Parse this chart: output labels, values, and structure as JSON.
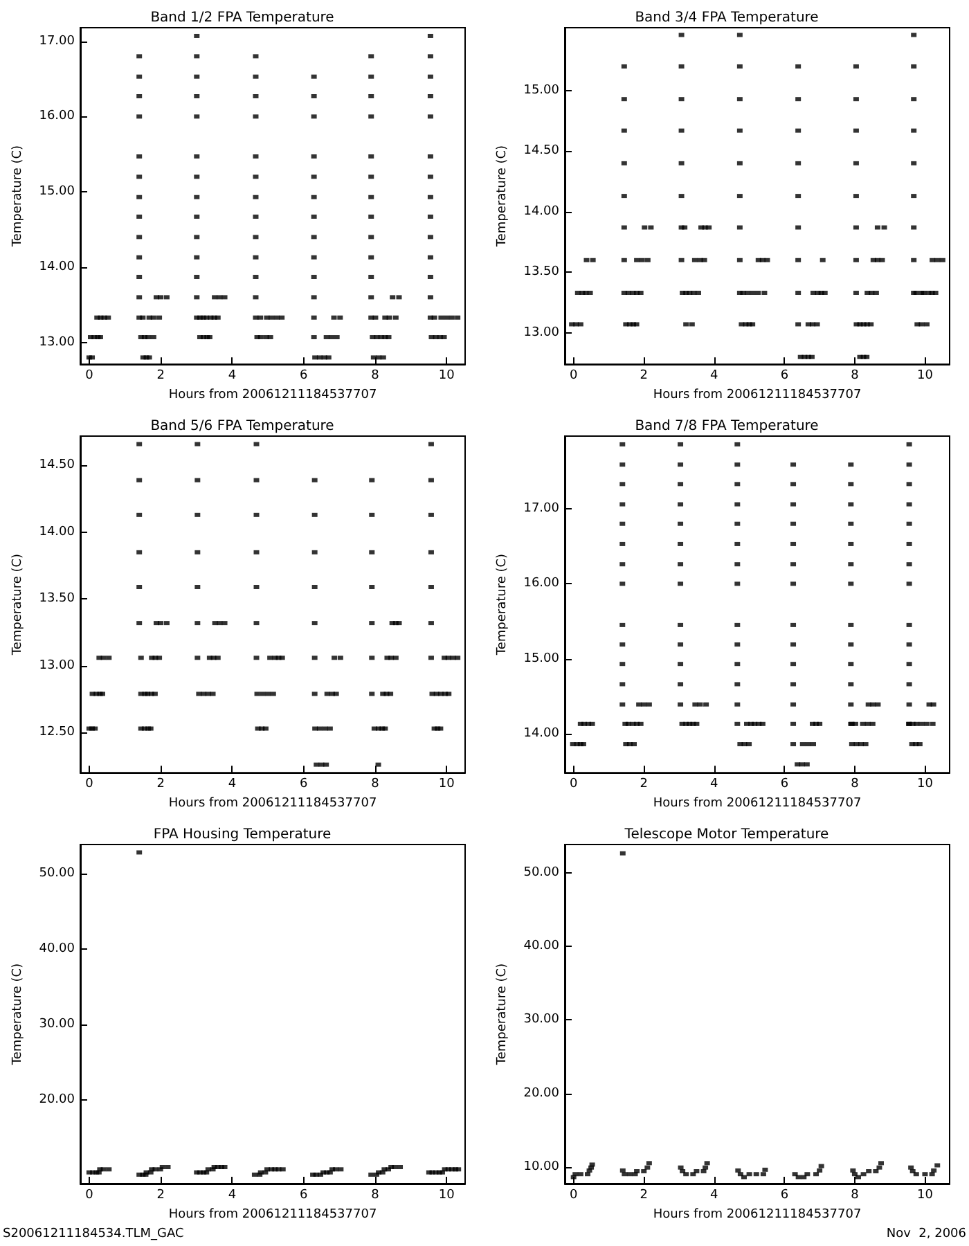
{
  "chart_data": [
    {
      "type": "scatter",
      "title": "Band 1/2 FPA Temperature",
      "xlabel": "Hours from 20061211184537707",
      "ylabel": "Temperature (C)",
      "marker": "square",
      "color": "#000000",
      "xlim": [
        -0.25,
        10.52
      ],
      "xticks": [
        0,
        2,
        4,
        6,
        8,
        10
      ],
      "ylim": [
        12.71,
        17.18
      ],
      "yticks": [
        {
          "value": 13,
          "label": "13.00"
        },
        {
          "value": 14,
          "label": "14.00"
        },
        {
          "value": 15,
          "label": "15.00"
        },
        {
          "value": 16,
          "label": "16.00"
        },
        {
          "value": 17,
          "label": "17.00"
        }
      ],
      "x": [
        0,
        0.08,
        0.04,
        0.14,
        0.24,
        0.31,
        0.22,
        0.32,
        0.42,
        0.53,
        1.4,
        1.4,
        1.4,
        1.4,
        1.4,
        1.4,
        1.4,
        1.4,
        1.4,
        1.4,
        1.4,
        1.4,
        1.4,
        1.5,
        1.45,
        1.55,
        1.65,
        1.8,
        1.51,
        1.6,
        1.68,
        1.68,
        1.8,
        1.96,
        1.88,
        2,
        2.17,
        3.01,
        3.01,
        3.01,
        3.01,
        3.01,
        3.01,
        3.01,
        3.01,
        3.01,
        3.01,
        3.01,
        3.01,
        3.01,
        3.01,
        3.1,
        3.19,
        3.28,
        3.4,
        3.5,
        3.6,
        3.1,
        3.2,
        3.3,
        3.37,
        3.51,
        3.65,
        3.79,
        4.66,
        4.66,
        4.66,
        4.66,
        4.66,
        4.66,
        4.66,
        4.66,
        4.66,
        4.66,
        4.66,
        4.66,
        4.66,
        4.79,
        4.97,
        5.1,
        5.25,
        5.39,
        4.7,
        4.8,
        4.95,
        5.07,
        6.29,
        6.29,
        6.29,
        6.29,
        6.29,
        6.29,
        6.29,
        6.29,
        6.29,
        6.29,
        6.29,
        6.29,
        6.29,
        6.32,
        6.45,
        6.58,
        6.7,
        6.64,
        6.78,
        6.93,
        6.85,
        7.02,
        7.89,
        7.89,
        7.89,
        7.89,
        7.89,
        7.89,
        7.89,
        7.89,
        7.89,
        7.89,
        7.89,
        7.89,
        7.89,
        7.93,
        8.05,
        8.17,
        8.28,
        8.38,
        7.96,
        8.1,
        8.23,
        8.01,
        8.28,
        8.4,
        8.58,
        8.49,
        8.67,
        9.55,
        9.55,
        9.55,
        9.55,
        9.55,
        9.55,
        9.55,
        9.55,
        9.55,
        9.55,
        9.55,
        9.55,
        9.55,
        9.55,
        9.66,
        9.85,
        10,
        10.15,
        10.31,
        9.58,
        9.7,
        9.82,
        9.93
      ],
      "values": [
        12.8,
        12.8,
        13.07,
        13.07,
        13.07,
        13.07,
        13.33,
        13.33,
        13.33,
        13.33,
        13.33,
        13.6,
        13.87,
        14.13,
        14.4,
        14.67,
        14.93,
        15.2,
        15.47,
        16,
        16.27,
        16.53,
        16.8,
        13.33,
        13.07,
        13.07,
        13.07,
        13.07,
        12.8,
        12.8,
        12.8,
        13.33,
        13.33,
        13.33,
        13.6,
        13.6,
        13.6,
        13.33,
        13.6,
        13.87,
        14.13,
        14.4,
        14.67,
        14.93,
        15.2,
        15.47,
        16,
        16.27,
        16.53,
        16.8,
        17.07,
        13.33,
        13.33,
        13.33,
        13.33,
        13.33,
        13.33,
        13.07,
        13.07,
        13.07,
        13.07,
        13.6,
        13.6,
        13.6,
        13.33,
        13.6,
        13.87,
        14.13,
        14.4,
        14.67,
        14.93,
        15.2,
        15.47,
        16,
        16.27,
        16.53,
        16.8,
        13.33,
        13.33,
        13.33,
        13.33,
        13.33,
        13.07,
        13.07,
        13.07,
        13.07,
        13.07,
        13.33,
        13.6,
        13.87,
        14.13,
        14.4,
        14.67,
        14.93,
        15.2,
        15.47,
        16,
        16.27,
        16.53,
        12.8,
        12.8,
        12.8,
        12.8,
        13.07,
        13.07,
        13.07,
        13.33,
        13.33,
        13.33,
        13.6,
        13.87,
        14.13,
        14.4,
        14.67,
        14.93,
        15.2,
        15.47,
        16,
        16.27,
        16.53,
        16.8,
        13.07,
        13.07,
        13.07,
        13.07,
        13.07,
        12.8,
        12.8,
        12.8,
        13.33,
        13.33,
        13.33,
        13.33,
        13.6,
        13.6,
        13.33,
        13.6,
        13.87,
        14.13,
        14.4,
        14.67,
        14.93,
        15.2,
        15.47,
        16,
        16.27,
        16.53,
        16.8,
        17.07,
        13.33,
        13.33,
        13.33,
        13.33,
        13.33,
        13.07,
        13.07,
        13.07,
        13.07
      ]
    },
    {
      "type": "scatter",
      "title": "Band 3/4 FPA Temperature",
      "xlabel": "Hours from 20061211184537707",
      "ylabel": "Temperature (C)",
      "marker": "square",
      "color": "#000000",
      "xlim": [
        -0.25,
        10.7
      ],
      "xticks": [
        0,
        2,
        4,
        6,
        8,
        10
      ],
      "ylim": [
        12.74,
        15.52
      ],
      "yticks": [
        {
          "value": 13,
          "label": "13.00"
        },
        {
          "value": 13.5,
          "label": "13.50"
        },
        {
          "value": 14,
          "label": "14.00"
        },
        {
          "value": 14.5,
          "label": "14.50"
        },
        {
          "value": 15,
          "label": "15.00"
        }
      ],
      "x": [
        -0.05,
        0.07,
        0.2,
        0.12,
        0.25,
        0.35,
        0.47,
        0.37,
        0.55,
        1.44,
        1.44,
        1.44,
        1.44,
        1.44,
        1.44,
        1.44,
        1.44,
        1.56,
        1.69,
        1.8,
        1.91,
        1.49,
        1.6,
        1.7,
        1.79,
        1.8,
        1.95,
        2.11,
        2.02,
        2.2,
        3.07,
        3.07,
        3.07,
        3.07,
        3.07,
        3.07,
        3.07,
        3.07,
        3.1,
        3.2,
        3.3,
        3.42,
        3.55,
        3.2,
        3.37,
        3.45,
        3.6,
        3.72,
        3.16,
        3.63,
        3.74,
        3.85,
        4.73,
        4.73,
        4.73,
        4.73,
        4.73,
        4.73,
        4.73,
        4.73,
        4.73,
        4.78,
        4.9,
        5,
        5.09,
        4.82,
        4.95,
        5.1,
        5.25,
        5.43,
        5.26,
        5.38,
        5.51,
        6.39,
        6.39,
        6.39,
        6.39,
        6.39,
        6.39,
        6.39,
        6.39,
        6.39,
        6.46,
        6.57,
        6.68,
        6.78,
        6.68,
        6.8,
        6.93,
        6.82,
        6.95,
        7.05,
        7.15,
        7.09,
        8.04,
        8.04,
        8.04,
        8.04,
        8.04,
        8.04,
        8.04,
        8.04,
        8.05,
        8.15,
        8.25,
        8.35,
        8.46,
        8.15,
        8.25,
        8.34,
        8.36,
        8.48,
        8.61,
        8.53,
        8.65,
        8.78,
        8.65,
        8.84,
        9.68,
        9.68,
        9.68,
        9.68,
        9.68,
        9.68,
        9.68,
        9.68,
        9.68,
        9.78,
        9.9,
        10.05,
        9.75,
        9.9,
        9.96,
        10.1,
        10.2,
        10.3,
        10.21,
        10.35,
        10.5
      ],
      "values": [
        13.07,
        13.07,
        13.07,
        13.33,
        13.33,
        13.33,
        13.33,
        13.6,
        13.6,
        13.33,
        13.6,
        13.87,
        14.13,
        14.4,
        14.67,
        14.93,
        15.2,
        13.33,
        13.33,
        13.33,
        13.33,
        13.07,
        13.07,
        13.07,
        13.07,
        13.6,
        13.6,
        13.6,
        13.87,
        13.87,
        13.6,
        13.87,
        14.13,
        14.4,
        14.67,
        14.93,
        15.2,
        15.46,
        13.33,
        13.33,
        13.33,
        13.33,
        13.33,
        13.07,
        13.07,
        13.6,
        13.6,
        13.6,
        13.87,
        13.87,
        13.87,
        13.87,
        13.33,
        13.6,
        13.87,
        14.13,
        14.4,
        14.67,
        14.93,
        15.2,
        15.46,
        13.07,
        13.07,
        13.07,
        13.07,
        13.33,
        13.33,
        13.33,
        13.33,
        13.33,
        13.6,
        13.6,
        13.6,
        13.07,
        13.33,
        13.6,
        13.87,
        14.13,
        14.4,
        14.67,
        14.93,
        15.2,
        12.8,
        12.8,
        12.8,
        12.8,
        13.07,
        13.07,
        13.07,
        13.33,
        13.33,
        13.33,
        13.33,
        13.6,
        13.33,
        13.6,
        13.87,
        14.13,
        14.4,
        14.67,
        14.93,
        15.2,
        13.07,
        13.07,
        13.07,
        13.07,
        13.07,
        12.8,
        12.8,
        12.8,
        13.33,
        13.33,
        13.33,
        13.6,
        13.6,
        13.6,
        13.87,
        13.87,
        13.33,
        13.6,
        13.87,
        14.13,
        14.4,
        14.67,
        14.93,
        15.2,
        15.46,
        13.07,
        13.07,
        13.07,
        13.33,
        13.33,
        13.33,
        13.33,
        13.33,
        13.33,
        13.6,
        13.6,
        13.6
      ]
    },
    {
      "type": "scatter",
      "title": "Band 5/6 FPA Temperature",
      "xlabel": "Hours from 20061211184537707",
      "ylabel": "Temperature (C)",
      "marker": "square",
      "color": "#000000",
      "xlim": [
        -0.25,
        10.52
      ],
      "xticks": [
        0,
        2,
        4,
        6,
        8,
        10
      ],
      "ylim": [
        12.2,
        14.72
      ],
      "yticks": [
        {
          "value": 12.5,
          "label": "12.50"
        },
        {
          "value": 13,
          "label": "13.00"
        },
        {
          "value": 13.5,
          "label": "13.50"
        },
        {
          "value": 14,
          "label": "14.00"
        },
        {
          "value": 14.5,
          "label": "14.50"
        }
      ],
      "x": [
        0,
        0.08,
        0.16,
        0.09,
        0.2,
        0.3,
        0.37,
        0.28,
        0.4,
        0.55,
        1.4,
        1.4,
        1.4,
        1.4,
        1.4,
        1.4,
        1.45,
        1.75,
        1.85,
        1.96,
        1.45,
        1.56,
        1.63,
        1.74,
        1.84,
        1.45,
        1.55,
        1.65,
        1.72,
        1.88,
        2,
        2.17,
        3.03,
        3.03,
        3.03,
        3.03,
        3.03,
        3.03,
        3.03,
        3.07,
        3.2,
        3.33,
        3.46,
        3.37,
        3.48,
        3.6,
        3.52,
        3.65,
        3.79,
        4.68,
        4.68,
        4.68,
        4.68,
        4.68,
        4.68,
        4.68,
        4.7,
        4.85,
        5,
        5.15,
        4.72,
        4.83,
        4.94,
        5.06,
        5.2,
        5.3,
        5.4,
        6.31,
        6.31,
        6.31,
        6.31,
        6.31,
        6.31,
        6.31,
        6.32,
        6.45,
        6.6,
        6.74,
        6.36,
        6.5,
        6.63,
        6.66,
        6.8,
        6.91,
        6.86,
        7.03,
        7.91,
        7.91,
        7.91,
        7.91,
        7.91,
        7.91,
        7.91,
        7.98,
        8.1,
        8.2,
        8.28,
        8.09,
        8.22,
        8.32,
        8.43,
        8.34,
        8.45,
        8.58,
        8.48,
        8.58,
        8.67,
        9.57,
        9.57,
        9.57,
        9.57,
        9.57,
        9.57,
        9.57,
        9.6,
        9.72,
        9.84,
        9.96,
        10.06,
        9.66,
        9.75,
        9.83,
        9.94,
        10.05,
        10.18,
        10.31
      ],
      "values": [
        12.53,
        12.53,
        12.53,
        12.79,
        12.79,
        12.79,
        12.79,
        13.06,
        13.06,
        13.06,
        13.32,
        13.59,
        13.85,
        14.13,
        14.39,
        14.66,
        13.06,
        13.06,
        13.06,
        13.06,
        12.79,
        12.79,
        12.79,
        12.79,
        12.79,
        12.53,
        12.53,
        12.53,
        12.53,
        13.32,
        13.32,
        13.32,
        13.06,
        13.32,
        13.59,
        13.85,
        14.13,
        14.39,
        14.66,
        12.79,
        12.79,
        12.79,
        12.79,
        13.06,
        13.06,
        13.06,
        13.32,
        13.32,
        13.32,
        13.06,
        13.32,
        13.59,
        13.85,
        14.13,
        14.39,
        14.66,
        12.79,
        12.79,
        12.79,
        12.79,
        12.53,
        12.53,
        12.53,
        13.06,
        13.06,
        13.06,
        13.06,
        12.79,
        13.06,
        13.32,
        13.59,
        13.85,
        14.13,
        14.39,
        12.53,
        12.53,
        12.53,
        12.53,
        12.26,
        12.26,
        12.26,
        12.79,
        12.79,
        12.79,
        13.06,
        13.06,
        12.79,
        13.06,
        13.32,
        13.59,
        13.85,
        14.13,
        14.39,
        12.53,
        12.53,
        12.53,
        12.53,
        12.26,
        12.79,
        12.79,
        12.79,
        13.06,
        13.06,
        13.06,
        13.32,
        13.32,
        13.32,
        13.06,
        13.32,
        13.59,
        13.85,
        14.13,
        14.39,
        14.66,
        12.79,
        12.79,
        12.79,
        12.79,
        12.79,
        12.53,
        12.53,
        12.53,
        13.06,
        13.06,
        13.06,
        13.06
      ]
    },
    {
      "type": "scatter",
      "title": "Band 7/8 FPA Temperature",
      "xlabel": "Hours from 20061211184537707",
      "ylabel": "Temperature (C)",
      "marker": "square",
      "color": "#000000",
      "xlim": [
        -0.25,
        10.7
      ],
      "xticks": [
        0,
        2,
        4,
        6,
        8,
        10
      ],
      "ylim": [
        13.48,
        17.97
      ],
      "yticks": [
        {
          "value": 14,
          "label": "14.00"
        },
        {
          "value": 15,
          "label": "15.00"
        },
        {
          "value": 16,
          "label": "16.00"
        },
        {
          "value": 17,
          "label": "17.00"
        }
      ],
      "x": [
        -0.02,
        0.1,
        0.2,
        0.28,
        0.2,
        0.3,
        0.42,
        0.53,
        1.39,
        1.39,
        1.39,
        1.39,
        1.39,
        1.39,
        1.39,
        1.39,
        1.39,
        1.39,
        1.39,
        1.39,
        1.39,
        1.47,
        1.56,
        1.69,
        1.8,
        1.91,
        1.49,
        1.6,
        1.72,
        1.86,
        2,
        2.15,
        3.04,
        3.04,
        3.04,
        3.04,
        3.04,
        3.04,
        3.04,
        3.04,
        3.04,
        3.04,
        3.04,
        3.04,
        3.04,
        3.09,
        3.2,
        3.3,
        3.4,
        3.5,
        3.46,
        3.6,
        3.77,
        4.66,
        4.66,
        4.66,
        4.66,
        4.66,
        4.66,
        4.66,
        4.66,
        4.66,
        4.66,
        4.66,
        4.66,
        4.66,
        4.66,
        4.74,
        4.86,
        4.99,
        4.93,
        5.05,
        5.15,
        5.27,
        5.38,
        6.25,
        6.25,
        6.25,
        6.25,
        6.25,
        6.25,
        6.25,
        6.25,
        6.25,
        6.25,
        6.25,
        6.25,
        6.25,
        6.25,
        6.37,
        6.5,
        6.64,
        6.52,
        6.67,
        6.82,
        6.8,
        6.9,
        7,
        7.89,
        7.89,
        7.89,
        7.89,
        7.89,
        7.89,
        7.89,
        7.89,
        7.89,
        7.89,
        7.89,
        7.89,
        7.89,
        7.92,
        8.02,
        8.23,
        8.37,
        8.51,
        7.92,
        8.05,
        8.18,
        8.31,
        8.39,
        8.52,
        8.66,
        9.55,
        9.55,
        9.55,
        9.55,
        9.55,
        9.55,
        9.55,
        9.55,
        9.55,
        9.55,
        9.55,
        9.55,
        9.55,
        9.55,
        9.63,
        9.74,
        9.85,
        9.54,
        9.65,
        9.76,
        9.9,
        10.05,
        10.22,
        10.12,
        10.24
      ],
      "values": [
        13.86,
        13.86,
        13.86,
        13.86,
        14.13,
        14.13,
        14.13,
        14.13,
        14.39,
        14.66,
        14.93,
        15.19,
        15.45,
        16,
        16.26,
        16.53,
        16.8,
        17.06,
        17.33,
        17.59,
        17.86,
        14.13,
        14.13,
        14.13,
        14.13,
        14.13,
        13.86,
        13.86,
        13.86,
        14.39,
        14.39,
        14.39,
        14.39,
        14.66,
        14.93,
        15.19,
        15.45,
        16,
        16.26,
        16.53,
        16.8,
        17.06,
        17.33,
        17.59,
        17.86,
        14.13,
        14.13,
        14.13,
        14.13,
        14.13,
        14.39,
        14.39,
        14.39,
        14.13,
        14.39,
        14.66,
        14.93,
        15.19,
        15.45,
        16,
        16.26,
        16.53,
        16.8,
        17.06,
        17.33,
        17.59,
        17.86,
        13.86,
        13.86,
        13.86,
        14.13,
        14.13,
        14.13,
        14.13,
        14.13,
        13.86,
        14.13,
        14.39,
        14.66,
        14.93,
        15.19,
        15.45,
        16,
        16.26,
        16.53,
        16.8,
        17.06,
        17.33,
        17.59,
        13.59,
        13.59,
        13.59,
        13.86,
        13.86,
        13.86,
        14.13,
        14.13,
        14.13,
        14.13,
        14.39,
        14.66,
        14.93,
        15.19,
        15.45,
        16,
        16.26,
        16.53,
        16.8,
        17.06,
        17.33,
        17.59,
        14.13,
        14.13,
        14.13,
        14.13,
        14.13,
        13.86,
        13.86,
        13.86,
        13.86,
        14.39,
        14.39,
        14.39,
        14.13,
        14.39,
        14.66,
        14.93,
        15.19,
        15.45,
        16,
        16.26,
        16.53,
        16.8,
        17.06,
        17.33,
        17.59,
        17.86,
        13.86,
        13.86,
        13.86,
        14.13,
        14.13,
        14.13,
        14.13,
        14.13,
        14.13,
        14.39,
        14.39
      ]
    },
    {
      "type": "scatter",
      "title": "FPA Housing Temperature",
      "xlabel": "Hours from 20061211184537707",
      "ylabel": "Temperature (C)",
      "marker": "square",
      "color": "#000000",
      "xlim": [
        -0.25,
        10.52
      ],
      "xticks": [
        0,
        2,
        4,
        6,
        8,
        10
      ],
      "ylim": [
        8.9,
        53.85
      ],
      "yticks": [
        {
          "value": 20,
          "label": "20.00"
        },
        {
          "value": 30,
          "label": "30.00"
        },
        {
          "value": 40,
          "label": "40.00"
        },
        {
          "value": 50,
          "label": "50.00"
        }
      ],
      "annotations": [
        "S20061211184534.TLM_GAC"
      ],
      "x": [
        0,
        0.1,
        0.2,
        0.27,
        0.3,
        0.4,
        0.55,
        1.4,
        1.4,
        1.5,
        1.58,
        1.6,
        1.72,
        1.75,
        1.85,
        1.99,
        2.05,
        2.2,
        3.01,
        3.1,
        3.2,
        3.28,
        3.33,
        3.46,
        3.5,
        3.6,
        3.7,
        3.79,
        4.63,
        4.77,
        4.8,
        4.93,
        4.98,
        5.1,
        5.2,
        5.3,
        5.42,
        6.26,
        6.35,
        6.47,
        6.55,
        6.65,
        6.74,
        6.8,
        6.9,
        7.04,
        7.89,
        8.04,
        8.1,
        8.21,
        8.26,
        8.37,
        8.45,
        8.55,
        8.7,
        9.51,
        9.6,
        9.7,
        9.8,
        9.88,
        9.95,
        10.05,
        10.15,
        10.25,
        10.33
      ],
      "values": [
        10.4,
        10.4,
        10.4,
        10.4,
        10.8,
        10.8,
        10.8,
        52.8,
        10.1,
        10.1,
        10.1,
        10.4,
        10.4,
        10.8,
        10.8,
        10.8,
        11.1,
        11.1,
        10.4,
        10.4,
        10.4,
        10.4,
        10.8,
        10.8,
        11.1,
        11.1,
        11.1,
        11.1,
        10.1,
        10.1,
        10.4,
        10.4,
        10.8,
        10.8,
        10.8,
        10.8,
        10.8,
        10.1,
        10.1,
        10.1,
        10.4,
        10.4,
        10.4,
        10.8,
        10.8,
        10.8,
        10.1,
        10.1,
        10.4,
        10.4,
        10.8,
        10.8,
        11.1,
        11.1,
        11.1,
        10.4,
        10.4,
        10.4,
        10.4,
        10.4,
        10.8,
        10.8,
        10.8,
        10.8,
        10.8
      ]
    },
    {
      "type": "scatter",
      "title": "Telescope Motor Temperature",
      "xlabel": "Hours from 20061211184537707",
      "ylabel": "Temperature (C)",
      "marker": "square",
      "color": "#000000",
      "xlim": [
        -0.25,
        10.7
      ],
      "xticks": [
        0,
        2,
        4,
        6,
        8,
        10
      ],
      "ylim": [
        7.7,
        53.9
      ],
      "yticks": [
        {
          "value": 10,
          "label": "10.00"
        },
        {
          "value": 20,
          "label": "20.00"
        },
        {
          "value": 30,
          "label": "30.00"
        },
        {
          "value": 40,
          "label": "40.00"
        },
        {
          "value": 50,
          "label": "50.00"
        }
      ],
      "annotations": [
        "Nov  2, 2006"
      ],
      "x": [
        0,
        0.05,
        0.2,
        0.4,
        0.45,
        0.5,
        0.53,
        1.4,
        1.4,
        1.45,
        1.6,
        1.75,
        1.8,
        2,
        2.1,
        2.15,
        3.05,
        3.1,
        3.2,
        3.4,
        3.5,
        3.7,
        3.75,
        3.8,
        4.68,
        4.75,
        4.85,
        5,
        5.2,
        5.4,
        5.45,
        6.3,
        6.4,
        6.55,
        6.65,
        6.9,
        7,
        7.05,
        7.95,
        8,
        8.1,
        8.25,
        8.4,
        8.6,
        8.7,
        8.75,
        9.6,
        9.65,
        9.75,
        10,
        10.2,
        10.25,
        10.35
      ],
      "values": [
        8.6,
        9,
        9,
        9,
        9.5,
        9.9,
        10.3,
        52.7,
        9.5,
        9,
        9,
        9,
        9.4,
        9.4,
        9.9,
        10.5,
        9.9,
        9.4,
        9,
        9,
        9.4,
        9.4,
        9.9,
        10.5,
        9.5,
        9,
        8.6,
        9,
        9,
        9,
        9.6,
        9,
        8.6,
        8.6,
        9,
        9,
        9.5,
        10.1,
        9.5,
        9,
        8.6,
        9,
        9.4,
        9.4,
        9.9,
        10.5,
        9.9,
        9.4,
        9,
        9,
        9,
        9.5,
        10.2
      ]
    }
  ]
}
